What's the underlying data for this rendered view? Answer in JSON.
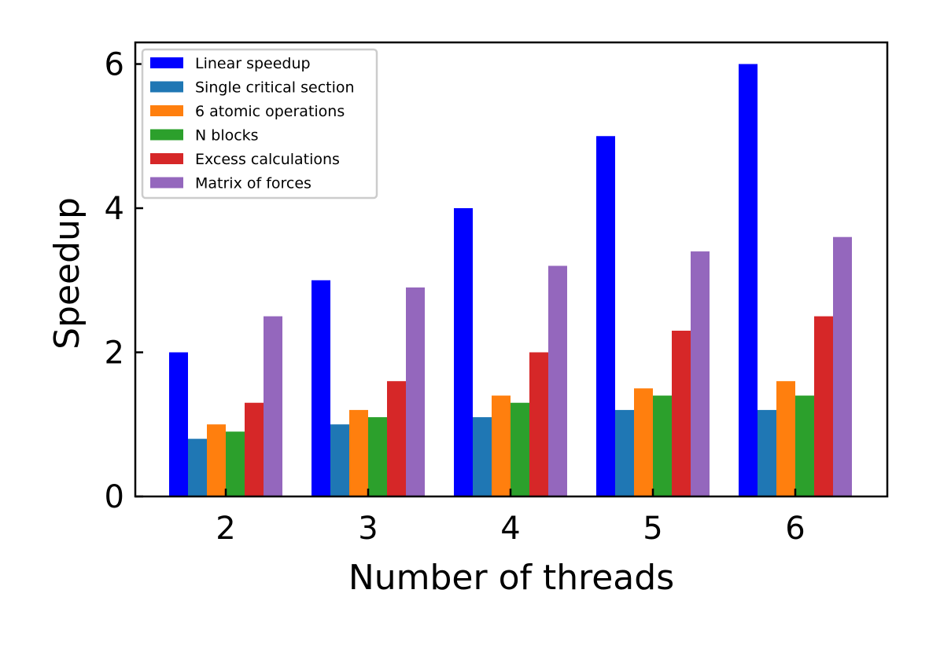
{
  "chart_data": {
    "type": "bar",
    "title": "",
    "xlabel": "Number of threads",
    "ylabel": "Speedup",
    "categories": [
      "2",
      "3",
      "4",
      "5",
      "6"
    ],
    "ylim": [
      0,
      6.3
    ],
    "yticks": [
      0,
      2,
      4,
      6
    ],
    "grid": false,
    "legend_position": "top-left",
    "series": [
      {
        "name": "Linear speedup",
        "color": "#0000ff",
        "values": [
          2,
          3,
          4,
          5,
          6
        ]
      },
      {
        "name": "Single critical section",
        "color": "#1f77b4",
        "values": [
          0.8,
          1.0,
          1.1,
          1.2,
          1.2
        ]
      },
      {
        "name": "6 atomic operations",
        "color": "#ff7f0e",
        "values": [
          1.0,
          1.2,
          1.4,
          1.5,
          1.6
        ]
      },
      {
        "name": "N blocks",
        "color": "#2ca02c",
        "values": [
          0.9,
          1.1,
          1.3,
          1.4,
          1.4
        ]
      },
      {
        "name": "Excess calculations",
        "color": "#d62728",
        "values": [
          1.3,
          1.6,
          2.0,
          2.3,
          2.5
        ]
      },
      {
        "name": "Matrix of forces",
        "color": "#9467bd",
        "values": [
          2.5,
          2.9,
          3.2,
          3.4,
          3.6
        ]
      }
    ]
  }
}
